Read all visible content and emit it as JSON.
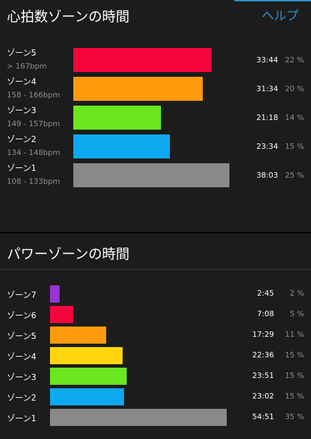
{
  "heart": {
    "title": "心拍数ゾーンの時間",
    "help_label": "ヘルプ",
    "chart_data": {
      "type": "bar",
      "orientation": "horizontal",
      "categories": [
        "ゾーン5",
        "ゾーン4",
        "ゾーン3",
        "ゾーン2",
        "ゾーン1"
      ],
      "ranges": [
        "> 167bpm",
        "158 - 166bpm",
        "149 - 157bpm",
        "134 - 148bpm",
        "108 - 133bpm"
      ],
      "values_seconds": [
        2024,
        1894,
        1278,
        1414,
        2283
      ],
      "time_labels": [
        "33:44",
        "31:34",
        "21:18",
        "23:34",
        "38:03"
      ],
      "percent_labels": [
        "22 %",
        "20 %",
        "14 %",
        "15 %",
        "25 %"
      ],
      "colors": [
        "#f5053c",
        "#ff9a0d",
        "#6ce61f",
        "#0da9ee",
        "#898989"
      ]
    }
  },
  "power": {
    "title": "パワーゾーンの時間",
    "chart_data": {
      "type": "bar",
      "orientation": "horizontal",
      "categories": [
        "ゾーン7",
        "ゾーン6",
        "ゾーン5",
        "ゾーン4",
        "ゾーン3",
        "ゾーン2",
        "ゾーン1"
      ],
      "values_seconds": [
        165,
        428,
        1049,
        1356,
        1431,
        1382,
        3291
      ],
      "time_labels": [
        "2:45",
        "7:08",
        "17:29",
        "22:36",
        "23:51",
        "23:02",
        "54:51"
      ],
      "percent_labels": [
        "2 %",
        "5 %",
        "11 %",
        "15 %",
        "15 %",
        "15 %",
        "35 %"
      ],
      "colors": [
        "#9b34d4",
        "#f5053c",
        "#ff9a0d",
        "#ffd60e",
        "#6ce61f",
        "#0da9ee",
        "#898989"
      ]
    }
  }
}
